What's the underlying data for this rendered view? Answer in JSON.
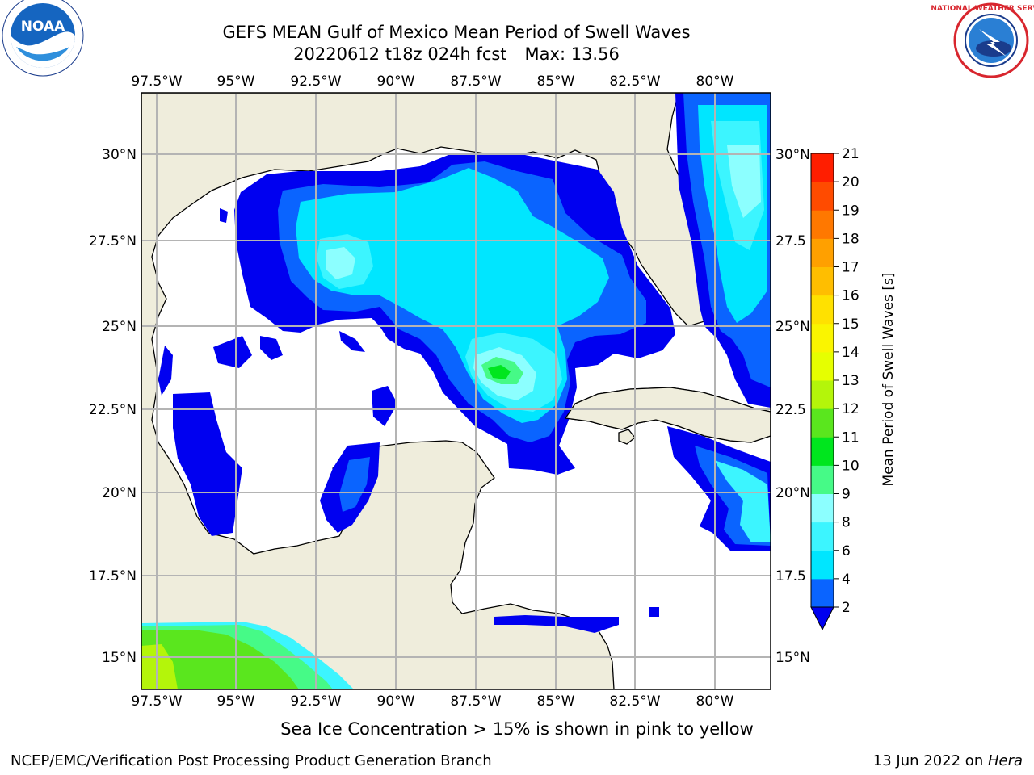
{
  "title": "GEFS MEAN Gulf of Mexico Mean Period of Swell Waves",
  "subtitle": {
    "run": "20220612 t18z 024h fcst",
    "max": "Max: 13.56"
  },
  "logos": {
    "left": {
      "name": "noaa-logo",
      "text": "NOAA"
    },
    "right": {
      "name": "nws-logo",
      "text": "NATIONAL WEATHER SERVICE"
    }
  },
  "map": {
    "lon_labels": [
      "97.5°W",
      "95°W",
      "92.5°W",
      "90°W",
      "87.5°W",
      "85°W",
      "82.5°W",
      "80°W"
    ],
    "lon_values": [
      -97.5,
      -95,
      -92.5,
      -90,
      -87.5,
      -85,
      -82.5,
      -80
    ],
    "lat_labels_left": [
      "30°N",
      "27.5°N",
      "25°N",
      "22.5°N",
      "20°N",
      "17.5°N",
      "15°N"
    ],
    "lat_labels_right": [
      "30°N",
      "27.5",
      "25°N",
      "22.5",
      "20°N",
      "17.5",
      "15°N"
    ],
    "lat_values": [
      30,
      27.5,
      25,
      22.5,
      20,
      17.5,
      15
    ],
    "lon_range": [
      -98,
      -78.3
    ],
    "lat_range": [
      14,
      31.8
    ],
    "land_color": "#efeddc",
    "grid": true
  },
  "colorbar": {
    "label": "Mean Period of Swell Waves [s]",
    "ticks": [
      "2",
      "4",
      "6",
      "8",
      "9",
      "10",
      "11",
      "12",
      "13",
      "14",
      "15",
      "16",
      "17",
      "18",
      "19",
      "20",
      "21"
    ],
    "colors": [
      "#0a64ff",
      "#00e6ff",
      "#3cf5ff",
      "#8cffff",
      "#46fa87",
      "#00e61e",
      "#5ae61e",
      "#b4f50a",
      "#e6ff00",
      "#faf500",
      "#ffe100",
      "#ffbe00",
      "#ffa000",
      "#ff7800",
      "#ff4b00",
      "#ff1e00"
    ],
    "under_color": "#0000f0"
  },
  "note": "Sea Ice Concentration > 15% is shown in pink to yellow",
  "footer": {
    "left": "NCEP/EMC/Verification Post Processing Product Generation Branch",
    "date": "13 Jun 2022 on ",
    "host": "Hera"
  }
}
